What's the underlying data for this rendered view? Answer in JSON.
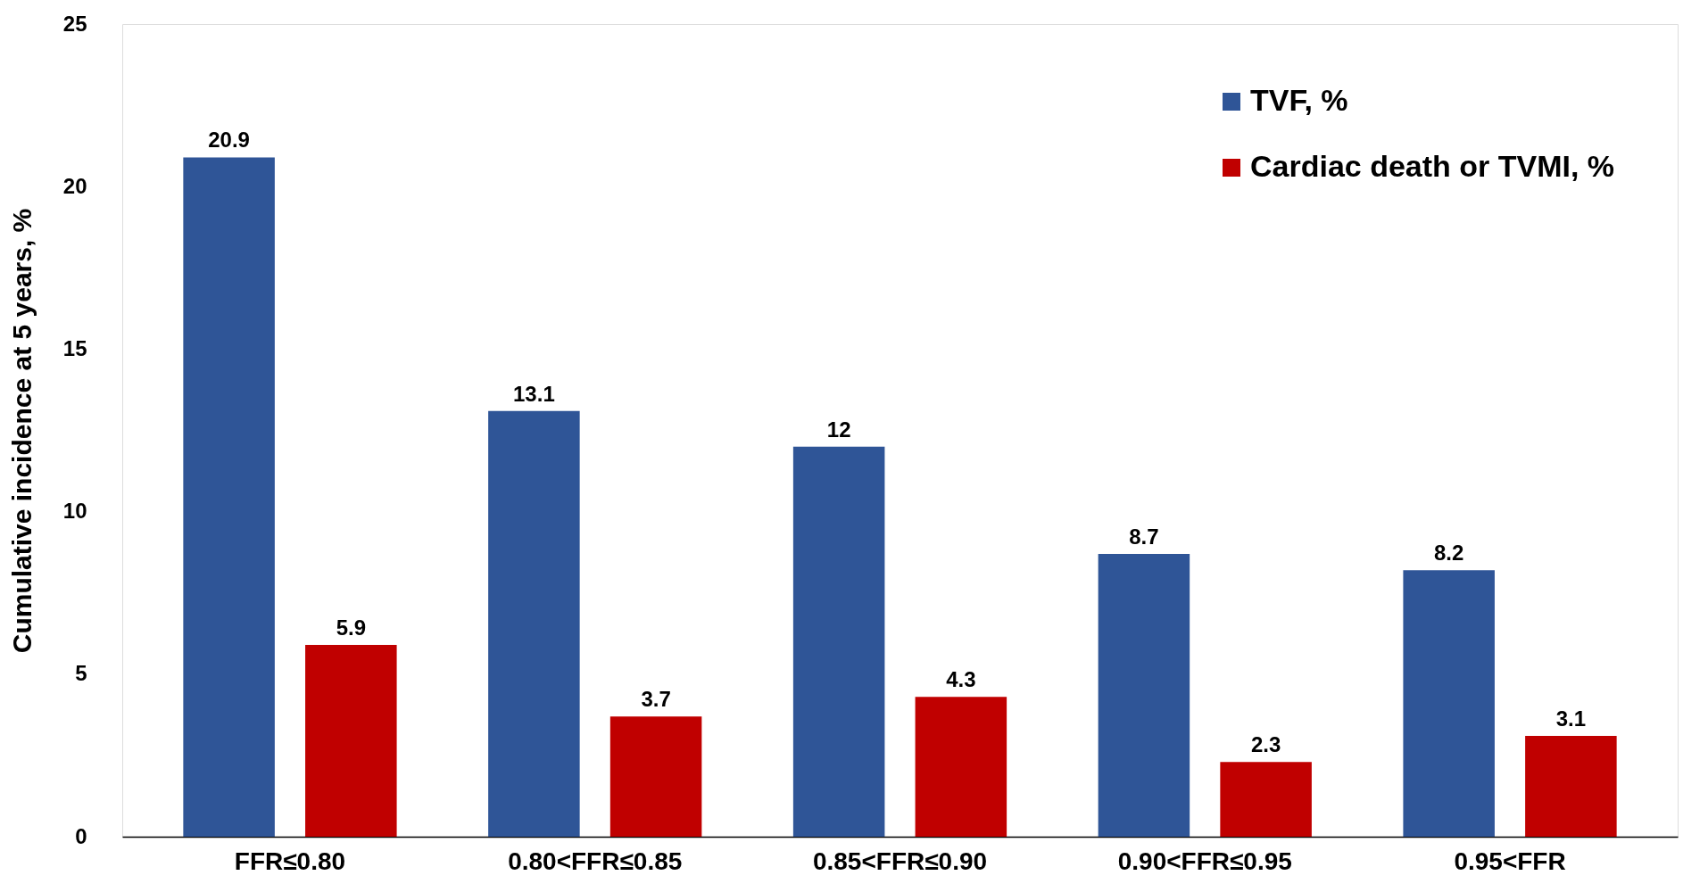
{
  "chart_data": {
    "type": "bar",
    "ylabel": "Cumulative incidence at 5 years, %",
    "categories": [
      "FFR≤0.80",
      "0.80<FFR≤0.85",
      "0.85<FFR≤0.90",
      "0.90<FFR≤0.95",
      "0.95<FFR"
    ],
    "series": [
      {
        "name": "TVF, %",
        "color": "#2f5597",
        "values": [
          20.9,
          13.1,
          12,
          8.7,
          8.2
        ]
      },
      {
        "name": "Cardiac death or TVMI, %",
        "color": "#c00000",
        "values": [
          5.9,
          3.7,
          4.3,
          2.3,
          3.1
        ]
      }
    ],
    "ylim": [
      0,
      25
    ],
    "yticks": [
      0,
      5,
      10,
      15,
      20,
      25
    ],
    "grid": false,
    "legend": "top right",
    "data_labels": true
  }
}
